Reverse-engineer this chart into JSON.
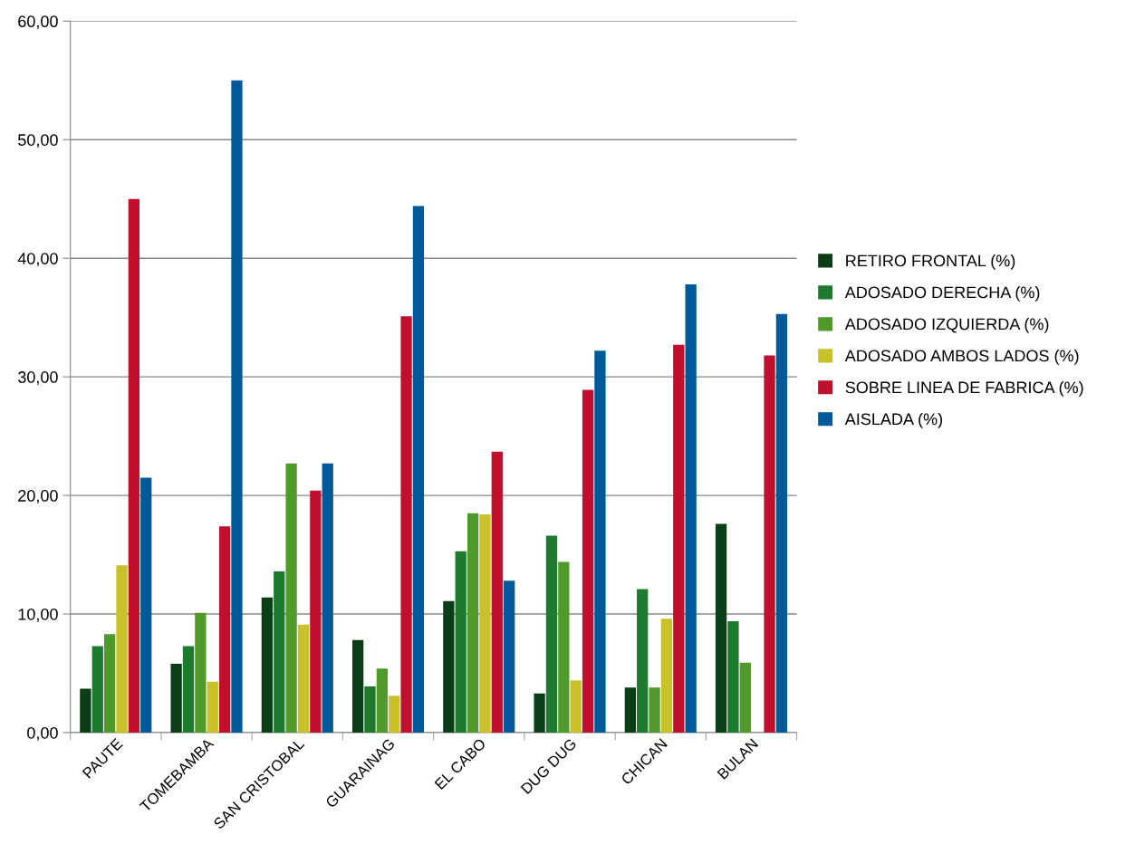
{
  "chart_data": {
    "type": "bar",
    "categories": [
      "PAUTE",
      "TOMEBAMBA",
      "SAN CRISTOBAL",
      "GUARAINAG",
      "EL CABO",
      "DUG DUG",
      "CHICAN",
      "BULAN"
    ],
    "series": [
      {
        "name": "RETIRO FRONTAL (%)",
        "color": "#0b3d16",
        "values": [
          3.7,
          5.8,
          11.4,
          7.8,
          11.1,
          3.3,
          3.8,
          17.6
        ]
      },
      {
        "name": "ADOSADO DERECHA (%)",
        "color": "#1e7a2e",
        "values": [
          7.3,
          7.3,
          13.6,
          3.9,
          15.3,
          16.6,
          12.1,
          9.4
        ]
      },
      {
        "name": "ADOSADO IZQUIERDA (%)",
        "color": "#4f9a2a",
        "values": [
          8.3,
          10.1,
          22.7,
          5.4,
          18.5,
          14.4,
          3.8,
          5.9
        ]
      },
      {
        "name": "ADOSADO AMBOS LADOS (%)",
        "color": "#c8c12a",
        "values": [
          14.1,
          4.3,
          9.1,
          3.1,
          18.4,
          4.4,
          9.6,
          0
        ]
      },
      {
        "name": "SOBRE LINEA DE FABRICA (%)",
        "color": "#c0102e",
        "values": [
          45.0,
          17.4,
          20.4,
          35.1,
          23.7,
          28.9,
          32.7,
          31.8
        ]
      },
      {
        "name": "AISLADA (%)",
        "color": "#005a9a",
        "values": [
          21.5,
          55.0,
          22.7,
          44.4,
          12.8,
          32.2,
          37.8,
          35.3
        ]
      }
    ],
    "ylim": [
      0,
      60
    ],
    "yticks": [
      {
        "value": 0,
        "label": "0,00"
      },
      {
        "value": 10,
        "label": "10,00"
      },
      {
        "value": 20,
        "label": "20,00"
      },
      {
        "value": 30,
        "label": "30,00"
      },
      {
        "value": 40,
        "label": "40,00"
      },
      {
        "value": 50,
        "label": "50,00"
      },
      {
        "value": 60,
        "label": "60,00"
      }
    ],
    "grid": "y",
    "legend": "right"
  }
}
